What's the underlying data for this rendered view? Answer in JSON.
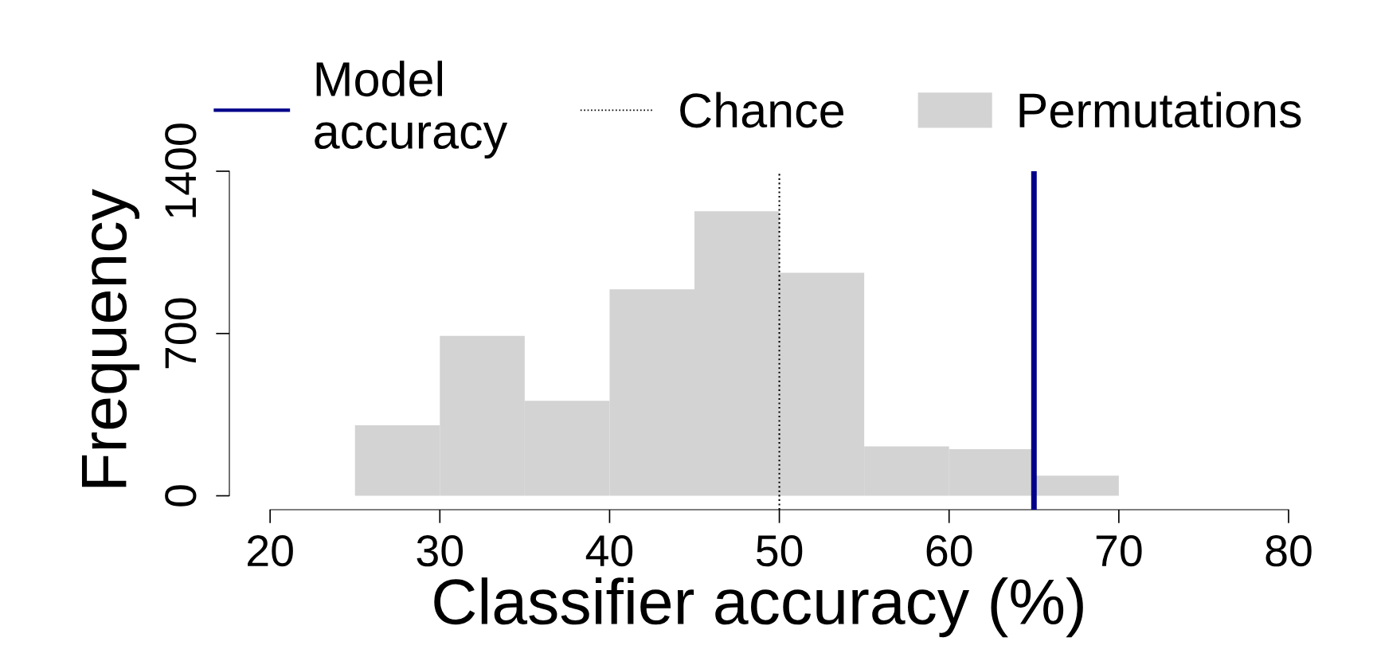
{
  "chart_data": {
    "type": "histogram",
    "xlabel": "Classifier accuracy (%)",
    "ylabel": "Frequency",
    "bins": [
      25,
      30,
      35,
      40,
      45,
      50,
      55,
      60,
      65,
      70
    ],
    "series": [
      {
        "name": "Permutations",
        "color": "#d3d3d3",
        "values": [
          304,
          690,
          410,
          891,
          1227,
          962,
          213,
          201,
          87
        ]
      }
    ],
    "ref_lines": [
      {
        "axis": "x",
        "value": 65,
        "label": "Model\naccuracy",
        "color": "#00008b",
        "line_style": "solid"
      },
      {
        "axis": "x",
        "value": 50,
        "label": "Chance",
        "color": "#000000",
        "line_style": "dotted"
      }
    ],
    "xlim": [
      17.6,
      80
    ],
    "ylim": [
      -60,
      1400
    ],
    "xticks": [
      20,
      30,
      40,
      50,
      60,
      70,
      80
    ],
    "yticks": [
      0,
      700,
      1400
    ],
    "grid": false,
    "legend": "top"
  }
}
